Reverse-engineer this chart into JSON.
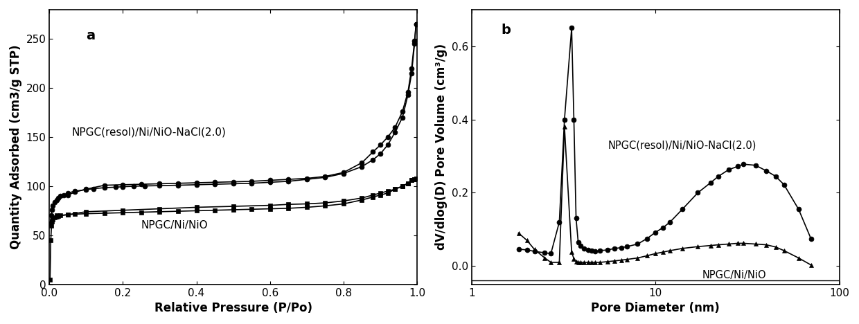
{
  "panel_a_label": "a",
  "panel_b_label": "b",
  "xlabel_a": "Relative Pressure (P/Po)",
  "ylabel_a": "Quantity Adsorbed (cm3/g STP)",
  "xlabel_b": "Pore Diameter (nm)",
  "ylabel_b": "dV/dlog(D) Pore Volume (cm³/g)",
  "label_circle": "NPGC(resol)/Ni/NiO-NaCl(2.0)",
  "label_square": "NPGC/Ni/NiO",
  "ylim_a": [
    0,
    280
  ],
  "yticks_a": [
    0,
    50,
    100,
    150,
    200,
    250
  ],
  "xlim_a": [
    0.0,
    1.0
  ],
  "xticks_a": [
    0.0,
    0.2,
    0.4,
    0.6,
    0.8,
    1.0
  ],
  "xlim_b": [
    1.0,
    100.0
  ],
  "ylim_b": [
    -0.05,
    0.7
  ],
  "yticks_b": [
    0.0,
    0.2,
    0.4,
    0.6
  ],
  "circle_ads_x": [
    0.002,
    0.005,
    0.008,
    0.01,
    0.015,
    0.02,
    0.025,
    0.03,
    0.04,
    0.05,
    0.07,
    0.1,
    0.12,
    0.15,
    0.18,
    0.2,
    0.23,
    0.26,
    0.3,
    0.35,
    0.4,
    0.45,
    0.5,
    0.55,
    0.6,
    0.65,
    0.7,
    0.75,
    0.8,
    0.85,
    0.88,
    0.9,
    0.92,
    0.94,
    0.96,
    0.975,
    0.985,
    0.993,
    0.997
  ],
  "circle_ads_y": [
    62,
    70,
    76,
    80,
    84,
    86,
    88,
    90,
    91,
    93,
    95,
    96.5,
    97.5,
    98.5,
    99,
    99.5,
    100,
    100.3,
    100.6,
    101,
    101.5,
    102,
    102.5,
    103,
    104,
    105,
    107,
    109,
    113,
    120,
    127,
    133,
    142,
    155,
    170,
    193,
    215,
    245,
    265
  ],
  "circle_des_x": [
    0.997,
    0.993,
    0.985,
    0.975,
    0.96,
    0.94,
    0.92,
    0.9,
    0.88,
    0.85,
    0.8,
    0.75,
    0.7,
    0.65,
    0.6,
    0.55,
    0.5,
    0.45,
    0.4,
    0.35,
    0.3,
    0.25,
    0.2,
    0.15,
    0.1,
    0.07,
    0.05
  ],
  "circle_des_y": [
    265,
    248,
    220,
    196,
    176,
    160,
    150,
    142,
    135,
    124,
    114,
    110,
    108,
    107,
    106,
    105,
    104.5,
    104,
    103.5,
    103,
    102.5,
    102,
    101.5,
    101,
    97,
    94,
    91
  ],
  "square_ads_x": [
    0.002,
    0.004,
    0.006,
    0.008,
    0.01,
    0.015,
    0.02,
    0.025,
    0.03,
    0.05,
    0.07,
    0.1,
    0.15,
    0.2,
    0.25,
    0.3,
    0.35,
    0.4,
    0.45,
    0.5,
    0.55,
    0.6,
    0.65,
    0.7,
    0.75,
    0.8,
    0.85,
    0.88,
    0.9,
    0.92,
    0.94,
    0.96,
    0.975,
    0.985,
    0.993,
    0.997
  ],
  "square_ads_y": [
    5,
    45,
    60,
    64,
    66,
    68,
    69,
    69.5,
    70,
    71,
    71.5,
    72,
    72.5,
    73,
    73.5,
    74,
    74.5,
    75,
    75.5,
    76,
    76.5,
    77,
    77.5,
    78.5,
    80,
    82,
    86,
    89,
    91,
    93,
    97,
    100,
    103,
    106,
    107,
    108
  ],
  "square_des_x": [
    0.997,
    0.993,
    0.985,
    0.975,
    0.96,
    0.94,
    0.92,
    0.9,
    0.88,
    0.85,
    0.8,
    0.75,
    0.7,
    0.65,
    0.6,
    0.5,
    0.4,
    0.3,
    0.2,
    0.1,
    0.05,
    0.02
  ],
  "square_des_y": [
    108,
    107,
    106,
    103,
    100,
    97,
    95,
    93,
    91,
    88,
    85,
    83,
    82,
    81.5,
    80.5,
    79.5,
    78.5,
    77,
    75.5,
    74,
    71,
    70
  ],
  "circle_pore_x": [
    1.8,
    2.0,
    2.2,
    2.5,
    2.7,
    3.0,
    3.2,
    3.5,
    3.6,
    3.7,
    3.8,
    3.9,
    4.1,
    4.3,
    4.5,
    4.7,
    5.0,
    5.5,
    6.0,
    6.5,
    7.0,
    8.0,
    9.0,
    10.0,
    11.0,
    12.0,
    14.0,
    17.0,
    20.0,
    22.0,
    25.0,
    28.0,
    30.0,
    35.0,
    40.0,
    45.0,
    50.0,
    60.0,
    70.0
  ],
  "circle_pore_y": [
    0.046,
    0.044,
    0.04,
    0.036,
    0.034,
    0.12,
    0.4,
    0.65,
    0.4,
    0.13,
    0.065,
    0.055,
    0.048,
    0.044,
    0.042,
    0.04,
    0.042,
    0.044,
    0.048,
    0.05,
    0.053,
    0.06,
    0.075,
    0.092,
    0.105,
    0.12,
    0.155,
    0.2,
    0.228,
    0.245,
    0.263,
    0.272,
    0.278,
    0.275,
    0.26,
    0.245,
    0.222,
    0.155,
    0.075
  ],
  "triangle_pore_x": [
    1.8,
    2.0,
    2.2,
    2.5,
    2.7,
    3.0,
    3.2,
    3.5,
    3.6,
    3.7,
    3.8,
    3.9,
    4.1,
    4.3,
    4.5,
    4.7,
    5.0,
    5.5,
    6.0,
    6.5,
    7.0,
    8.0,
    9.0,
    10.0,
    11.0,
    12.0,
    14.0,
    17.0,
    20.0,
    22.0,
    25.0,
    28.0,
    30.0,
    35.0,
    40.0,
    45.0,
    50.0,
    60.0,
    70.0
  ],
  "triangle_pore_y": [
    0.09,
    0.07,
    0.045,
    0.022,
    0.01,
    0.01,
    0.38,
    0.038,
    0.02,
    0.012,
    0.01,
    0.01,
    0.01,
    0.01,
    0.01,
    0.01,
    0.01,
    0.012,
    0.014,
    0.016,
    0.018,
    0.022,
    0.028,
    0.034,
    0.038,
    0.042,
    0.048,
    0.053,
    0.056,
    0.058,
    0.06,
    0.062,
    0.062,
    0.06,
    0.058,
    0.052,
    0.042,
    0.022,
    0.003
  ],
  "ann_circle_x_a": 0.06,
  "ann_circle_y_a": 155,
  "ann_square_x_a": 0.25,
  "ann_square_y_a": 60,
  "ann_circle_x_b": 5.5,
  "ann_circle_y_b": 0.33,
  "ann_square_x_b": 18.0,
  "ann_square_y_b": -0.025
}
